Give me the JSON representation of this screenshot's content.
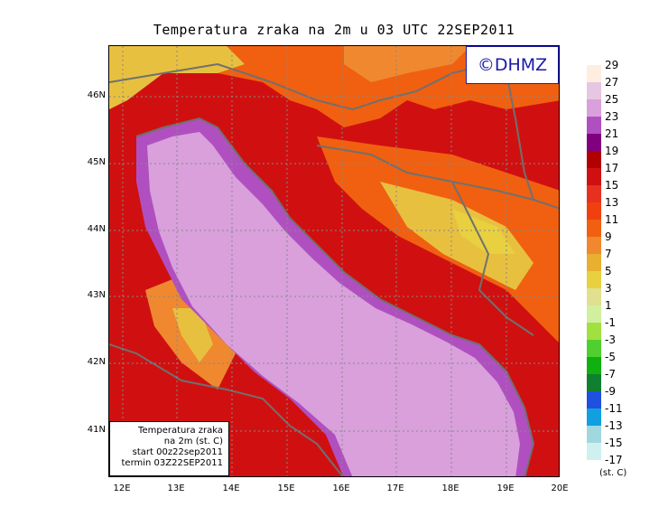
{
  "title": "Temperatura zraka na 2m u 03 UTC 22SEP2011",
  "logo_text": "©DHMZ",
  "info_box": {
    "line1": "Temperatura zraka",
    "line2": "na 2m (st. C)",
    "line3": "start 00z22sep2011",
    "line4": "termin 03Z22SEP2011"
  },
  "lat_labels": [
    "46N",
    "45N",
    "44N",
    "43N",
    "42N",
    "41N"
  ],
  "lon_labels": [
    "12E",
    "13E",
    "14E",
    "15E",
    "16E",
    "17E",
    "18E",
    "19E",
    "20E"
  ],
  "legend": {
    "unit": "(st. C)",
    "levels": [
      "29",
      "27",
      "25",
      "23",
      "21",
      "19",
      "17",
      "15",
      "13",
      "11",
      "9",
      "7",
      "5",
      "3",
      "1",
      "-1",
      "-3",
      "-5",
      "-7",
      "-9",
      "-11",
      "-13",
      "-15",
      "-17"
    ],
    "colors": [
      "#fdeee0",
      "#e6c6e0",
      "#d9a0dc",
      "#b050c0",
      "#800080",
      "#b00000",
      "#d01010",
      "#e83020",
      "#f04010",
      "#f06010",
      "#f08830",
      "#e8b030",
      "#e8d040",
      "#e0e090",
      "#d0f0a0",
      "#a0e040",
      "#50d030",
      "#10b010",
      "#108030",
      "#2050e0",
      "#10a0e0",
      "#a0d8e0",
      "#d0f0f0",
      "#ffffff"
    ]
  },
  "map_colors": {
    "sea": "#d9a0dc",
    "coast_band": "#b050c0",
    "warm": "#d01010",
    "mid": "#e83020",
    "orange": "#f06010",
    "yellow": "#e8c040",
    "border": "#707070"
  }
}
